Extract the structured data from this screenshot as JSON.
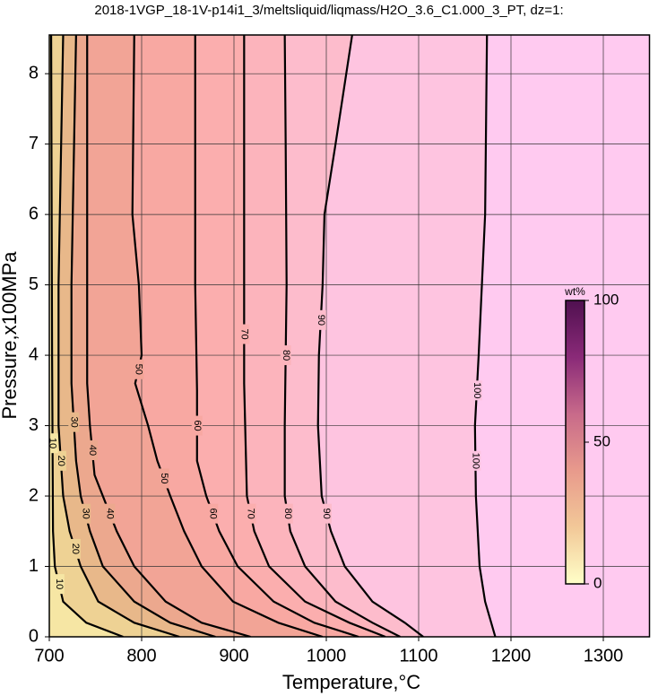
{
  "chart_data": {
    "type": "contour",
    "title": "2018-1VGP_18-1V-p14i1_3/meltsliquid/liqmass/H2O_3.6_C1.000_3_PT, dz=1:",
    "x_label": "Temperature,°C",
    "y_label": "Pressure,x100MPa",
    "xlim": [
      700,
      1350
    ],
    "ylim": [
      0,
      8.55
    ],
    "xticks": [
      700,
      800,
      900,
      1000,
      1100,
      1200,
      1300
    ],
    "yticks": [
      0,
      1,
      2,
      3,
      4,
      5,
      6,
      7,
      8
    ],
    "grid": true,
    "background": "#ffcaf0",
    "contours": [
      {
        "level": 100,
        "color": "#fec4e0",
        "x": [
          1174,
          1172,
          1165,
          1161,
          1162,
          1166,
          1172,
          1183
        ],
        "y": [
          8.55,
          6,
          4,
          3,
          2,
          1,
          0.5,
          0
        ]
      },
      {
        "level": 90,
        "color": "#fdbccc",
        "x": [
          1028,
          1010,
          998,
          996,
          992,
          991,
          995,
          1005,
          1020,
          1050,
          1085,
          1105
        ],
        "y": [
          8.55,
          7,
          6,
          5,
          4,
          3,
          2,
          1.5,
          1,
          0.5,
          0.2,
          0
        ]
      },
      {
        "level": 80,
        "color": "#fcb4bc",
        "x": [
          955,
          956,
          957,
          955,
          955,
          961,
          977,
          1010,
          1050,
          1080
        ],
        "y": [
          8.55,
          7,
          5,
          3,
          2,
          1.5,
          1,
          0.5,
          0.2,
          0
        ]
      },
      {
        "level": 70,
        "color": "#fbaeae",
        "x": [
          911,
          911,
          911,
          911,
          914,
          922,
          938,
          977,
          1025,
          1064
        ],
        "y": [
          8.55,
          7,
          5,
          3.6,
          2,
          1.5,
          1,
          0.5,
          0.2,
          0
        ]
      },
      {
        "level": 60,
        "color": "#f8a8a2",
        "x": [
          858,
          858,
          858,
          860,
          860,
          870,
          884,
          904,
          943,
          987,
          1035
        ],
        "y": [
          8.55,
          7,
          5,
          3.5,
          2.5,
          2,
          1.5,
          1,
          0.5,
          0.2,
          0
        ]
      },
      {
        "level": 50,
        "color": "#f2a496",
        "x": [
          792,
          790,
          797,
          800,
          793,
          807,
          817,
          831,
          846,
          865,
          899,
          948,
          996
        ],
        "y": [
          8.55,
          6,
          5,
          4,
          3.6,
          3,
          2.5,
          2,
          1.5,
          1,
          0.5,
          0.2,
          0
        ]
      },
      {
        "level": 40,
        "color": "#eca88e",
        "x": [
          741,
          741,
          741,
          744,
          749,
          758,
          773,
          792,
          826,
          865,
          918
        ],
        "y": [
          8.55,
          5,
          3.6,
          3,
          2.3,
          2,
          1.5,
          1,
          0.5,
          0.2,
          0
        ]
      },
      {
        "level": 30,
        "color": "#e8b88a",
        "x": [
          729,
          724,
          724,
          729,
          734,
          744,
          758,
          792,
          831,
          880
        ],
        "y": [
          8.55,
          5,
          3.6,
          2.5,
          2,
          1.5,
          1,
          0.5,
          0.2,
          0
        ]
      },
      {
        "level": 20,
        "color": "#eed294",
        "x": [
          715,
          710,
          710,
          715,
          722,
          734,
          753,
          792,
          841
        ],
        "y": [
          8.55,
          5,
          3,
          2,
          1.5,
          1,
          0.5,
          0.2,
          0
        ]
      },
      {
        "level": 10,
        "color": "#f6e6a4",
        "x": [
          702,
          703,
          704,
          706,
          715,
          740,
          780
        ],
        "y": [
          8.55,
          4,
          1.5,
          1,
          0.5,
          0.2,
          0
        ]
      }
    ],
    "colorbar": {
      "label": "wt%",
      "lim": [
        0,
        100
      ],
      "ticks": [
        0,
        50,
        100
      ],
      "colors": [
        "#ffffc8",
        "#f2c898",
        "#e89a8c",
        "#c86a8a",
        "#8a2a78",
        "#501050"
      ]
    }
  }
}
